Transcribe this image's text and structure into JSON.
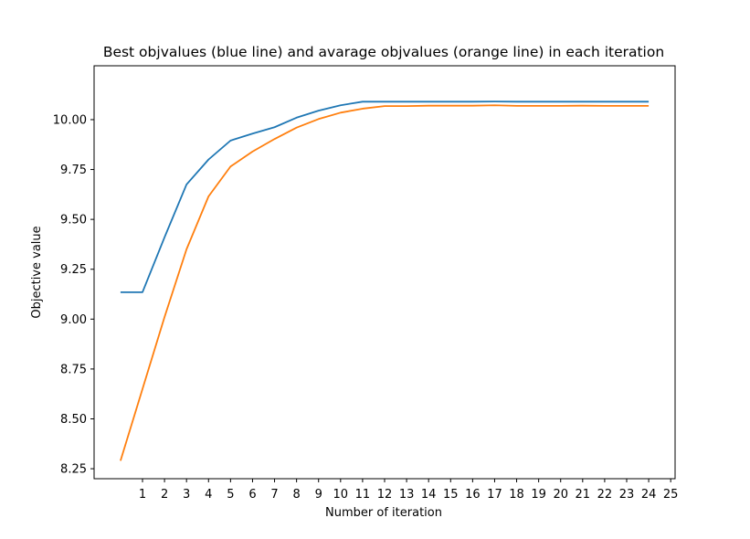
{
  "chart_data": {
    "type": "line",
    "title": "Best objvalues (blue line) and avarage objvalues (orange line) in each iteration",
    "xlabel": "Number of iteration",
    "ylabel": "Objective value",
    "xlim": [
      -1.2,
      25.2
    ],
    "ylim": [
      8.2,
      10.27
    ],
    "x_ticks": [
      1,
      2,
      3,
      4,
      5,
      6,
      7,
      8,
      9,
      10,
      11,
      12,
      13,
      14,
      15,
      16,
      17,
      18,
      19,
      20,
      21,
      22,
      23,
      24,
      25
    ],
    "x_tick_labels": [
      "1",
      "2",
      "3",
      "4",
      "5",
      "6",
      "7",
      "8",
      "9",
      "10",
      "11",
      "12",
      "13",
      "14",
      "15",
      "16",
      "17",
      "18",
      "19",
      "20",
      "21",
      "22",
      "23",
      "24",
      "25"
    ],
    "y_ticks": [
      8.25,
      8.5,
      8.75,
      9.0,
      9.25,
      9.5,
      9.75,
      10.0
    ],
    "y_tick_labels": [
      "8.25",
      "8.50",
      "8.75",
      "9.00",
      "9.25",
      "9.50",
      "9.75",
      "10.00"
    ],
    "grid": false,
    "legend": "none",
    "x": [
      0,
      1,
      2,
      3,
      4,
      5,
      6,
      7,
      8,
      9,
      10,
      11,
      12,
      13,
      14,
      15,
      16,
      17,
      18,
      19,
      20,
      21,
      22,
      23,
      24
    ],
    "series": [
      {
        "color": "#1f77b4",
        "values": [
          9.135,
          9.135,
          9.41,
          9.675,
          9.8,
          9.895,
          9.93,
          9.962,
          10.01,
          10.045,
          10.072,
          10.09,
          10.09,
          10.09,
          10.09,
          10.09,
          10.09,
          10.091,
          10.09,
          10.09,
          10.09,
          10.09,
          10.09,
          10.09,
          10.09
        ]
      },
      {
        "color": "#ff7f0e",
        "values": [
          8.29,
          8.65,
          9.01,
          9.35,
          9.615,
          9.765,
          9.84,
          9.903,
          9.96,
          10.003,
          10.035,
          10.055,
          10.068,
          10.068,
          10.07,
          10.07,
          10.07,
          10.072,
          10.069,
          10.069,
          10.069,
          10.07,
          10.069,
          10.069,
          10.069
        ]
      }
    ]
  }
}
